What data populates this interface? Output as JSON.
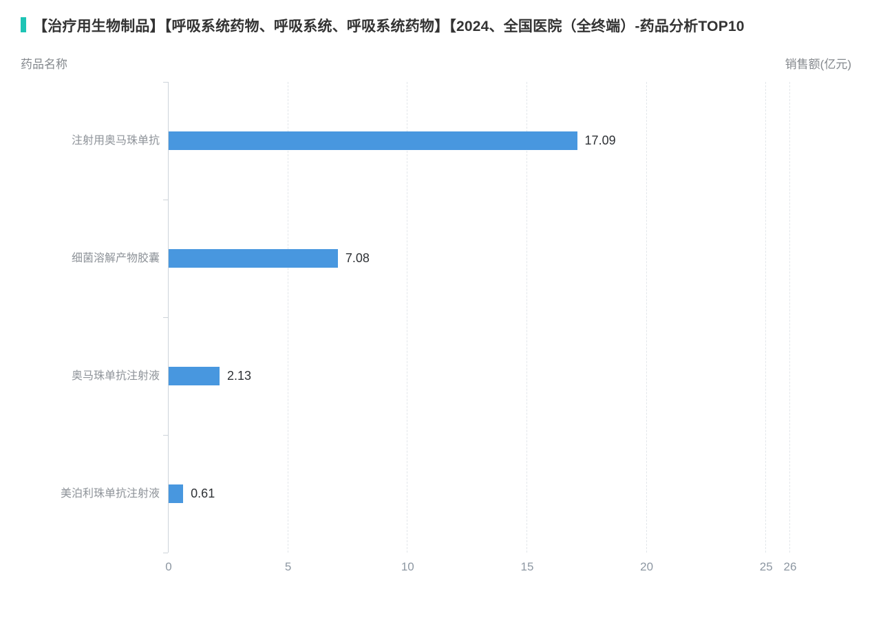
{
  "title": {
    "text": "【治疗用生物制品】【呼吸系统药物、呼吸系统、呼吸系统药物】【2024、全国医院（全终端）-药品分析TOP10",
    "accent_color": "#1ec4b5"
  },
  "axis_headers": {
    "left": "药品名称",
    "right": "销售额(亿元)"
  },
  "chart_data": {
    "type": "bar",
    "orientation": "horizontal",
    "title": "【治疗用生物制品】【呼吸系统药物、呼吸系统、呼吸系统药物】【2024、全国医院（全终端）-药品分析TOP10",
    "xlabel": "销售额(亿元)",
    "ylabel": "药品名称",
    "categories": [
      "注射用奥马珠单抗",
      "细菌溶解产物胶囊",
      "奥马珠单抗注射液",
      "美泊利珠单抗注射液"
    ],
    "values": [
      17.09,
      7.08,
      2.13,
      0.61
    ],
    "value_labels": [
      "17.09",
      "7.08",
      "2.13",
      "0.61"
    ],
    "x_ticks": [
      0,
      5,
      10,
      15,
      20,
      25,
      26
    ],
    "xlim": [
      0,
      26
    ],
    "grid": "dashed-vertical",
    "legend": "none",
    "bar_color": "#4897df"
  }
}
